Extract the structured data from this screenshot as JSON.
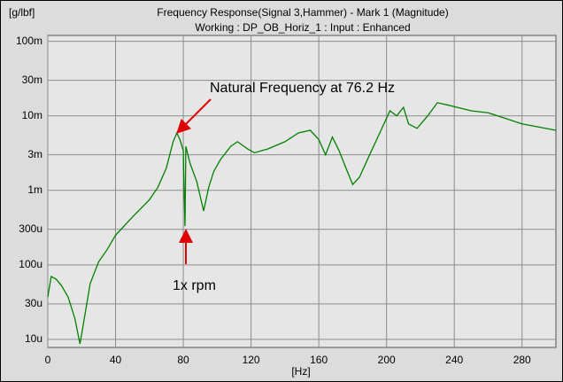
{
  "chart_data": {
    "type": "line",
    "title": "Frequency Response(Signal 3,Hammer) - Mark 1 (Magnitude)",
    "subtitle": "Working : DP_OB_Horiz_1 : Input : Enhanced",
    "y_label": "[g/lbf]",
    "x_label": "[Hz]",
    "annotations": [
      "Natural Frequency at 76.2 Hz",
      "1x rpm"
    ],
    "log_y": true,
    "grid": true,
    "xlim": [
      0,
      300
    ],
    "xticks": [
      0,
      40,
      80,
      120,
      160,
      200,
      240,
      280
    ],
    "ylim": [
      7.8e-06,
      0.12
    ],
    "yticks": [
      {
        "value": 1e-05,
        "label": "10u"
      },
      {
        "value": 3e-05,
        "label": "30u"
      },
      {
        "value": 0.0001,
        "label": "100u"
      },
      {
        "value": 0.0003,
        "label": "300u"
      },
      {
        "value": 0.001,
        "label": "1m"
      },
      {
        "value": 0.003,
        "label": "3m"
      },
      {
        "value": 0.01,
        "label": "10m"
      },
      {
        "value": 0.03,
        "label": "30m"
      },
      {
        "value": 0.1,
        "label": "100m"
      }
    ],
    "x": [
      0,
      2,
      5,
      8,
      12,
      16,
      19,
      21,
      25,
      30,
      35,
      40,
      50,
      60,
      65,
      70,
      74,
      76.2,
      78,
      80,
      80.5,
      81,
      81.5,
      84,
      88,
      92,
      95,
      98,
      102,
      108,
      112,
      118,
      122,
      130,
      140,
      148,
      155,
      160,
      164,
      168,
      172,
      176,
      180,
      184,
      190,
      196,
      202,
      206,
      210,
      213,
      218,
      224,
      230,
      236,
      250,
      260,
      280,
      300
    ],
    "series": [
      {
        "name": "Magnitude",
        "color": "#008000",
        "values": [
          3.7e-05,
          7e-05,
          6.4e-05,
          5.3e-05,
          3.7e-05,
          1.9e-05,
          8.7e-06,
          1.6e-05,
          5.6e-05,
          0.00011,
          0.00016,
          0.00025,
          0.00044,
          0.00075,
          0.0011,
          0.002,
          0.0045,
          0.0059,
          0.0048,
          0.0034,
          0.00092,
          0.00033,
          0.0039,
          0.0023,
          0.0013,
          0.00053,
          0.0011,
          0.0018,
          0.0026,
          0.0039,
          0.0045,
          0.0036,
          0.0032,
          0.0036,
          0.0045,
          0.0059,
          0.0064,
          0.0048,
          0.003,
          0.0052,
          0.0034,
          0.002,
          0.0012,
          0.0015,
          0.003,
          0.0059,
          0.0117,
          0.01,
          0.013,
          0.0078,
          0.0068,
          0.0098,
          0.015,
          0.014,
          0.0117,
          0.011,
          0.0078,
          0.0064
        ]
      }
    ]
  }
}
